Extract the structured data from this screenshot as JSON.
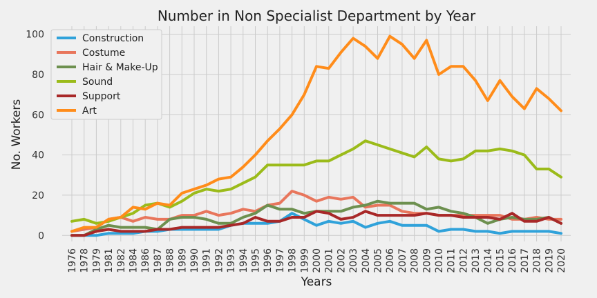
{
  "chart_data": {
    "type": "line",
    "title": "Number in Non Specialist Department by Year",
    "xlabel": "Years",
    "ylabel": "No. Workers",
    "ylim": [
      -3,
      104
    ],
    "yticks": [
      0,
      20,
      40,
      60,
      80,
      100
    ],
    "grid": true,
    "legend_position": "top-left",
    "x": [
      "1976",
      "1978",
      "1979",
      "1981",
      "1982",
      "1984",
      "1986",
      "1987",
      "1988",
      "1989",
      "1990",
      "1991",
      "1992",
      "1993",
      "1994",
      "1995",
      "1996",
      "1997",
      "1998",
      "1999",
      "2000",
      "2001",
      "2002",
      "2003",
      "2004",
      "2005",
      "2006",
      "2007",
      "2008",
      "2009",
      "2010",
      "2011",
      "2012",
      "2013",
      "2014",
      "2015",
      "2016",
      "2017",
      "2018",
      "2019",
      "2020"
    ],
    "series": [
      {
        "name": "Construction",
        "color": "#30a2da",
        "values": [
          0,
          0,
          0,
          1,
          1,
          1,
          2,
          2,
          3,
          3,
          3,
          3,
          3,
          5,
          6,
          6,
          6,
          7,
          11,
          8,
          5,
          7,
          6,
          7,
          4,
          6,
          7,
          5,
          5,
          5,
          2,
          3,
          3,
          2,
          2,
          1,
          2,
          2,
          2,
          2,
          1
        ]
      },
      {
        "name": "Costume",
        "color": "#e8765c",
        "values": [
          2,
          3,
          4,
          8,
          9,
          7,
          9,
          8,
          8,
          10,
          10,
          12,
          10,
          11,
          13,
          12,
          15,
          16,
          22,
          20,
          17,
          19,
          18,
          19,
          14,
          15,
          15,
          12,
          11,
          11,
          10,
          10,
          10,
          10,
          10,
          10,
          8,
          8,
          9,
          8,
          8
        ]
      },
      {
        "name": "Hair & Make-Up",
        "color": "#6d904f",
        "values": [
          0,
          0,
          3,
          5,
          4,
          4,
          4,
          3,
          8,
          9,
          9,
          8,
          6,
          6,
          9,
          11,
          15,
          13,
          13,
          11,
          12,
          12,
          12,
          14,
          15,
          17,
          16,
          16,
          16,
          13,
          14,
          12,
          11,
          9,
          6,
          8,
          9,
          8,
          8,
          9,
          6
        ]
      },
      {
        "name": "Sound",
        "color": "#9bbb1a",
        "values": [
          7,
          8,
          6,
          7,
          9,
          11,
          15,
          16,
          14,
          17,
          21,
          23,
          22,
          23,
          26,
          29,
          35,
          35,
          35,
          35,
          37,
          37,
          40,
          43,
          47,
          45,
          43,
          41,
          39,
          44,
          38,
          37,
          38,
          42,
          42,
          43,
          42,
          40,
          33,
          33,
          29
        ]
      },
      {
        "name": "Support",
        "color": "#a82828",
        "values": [
          0,
          0,
          2,
          3,
          2,
          2,
          2,
          3,
          3,
          4,
          4,
          4,
          4,
          5,
          6,
          9,
          7,
          7,
          9,
          9,
          12,
          11,
          8,
          9,
          12,
          10,
          10,
          10,
          10,
          11,
          10,
          10,
          9,
          9,
          9,
          8,
          11,
          7,
          7,
          9,
          6
        ]
      },
      {
        "name": "Art",
        "color": "#ff8c1a",
        "values": [
          2,
          4,
          4,
          8,
          9,
          14,
          13,
          16,
          15,
          21,
          23,
          25,
          28,
          29,
          34,
          40,
          47,
          53,
          60,
          70,
          84,
          83,
          91,
          98,
          94,
          88,
          99,
          95,
          88,
          97,
          80,
          84,
          84,
          77,
          67,
          77,
          69,
          63,
          73,
          68,
          62
        ]
      }
    ]
  }
}
